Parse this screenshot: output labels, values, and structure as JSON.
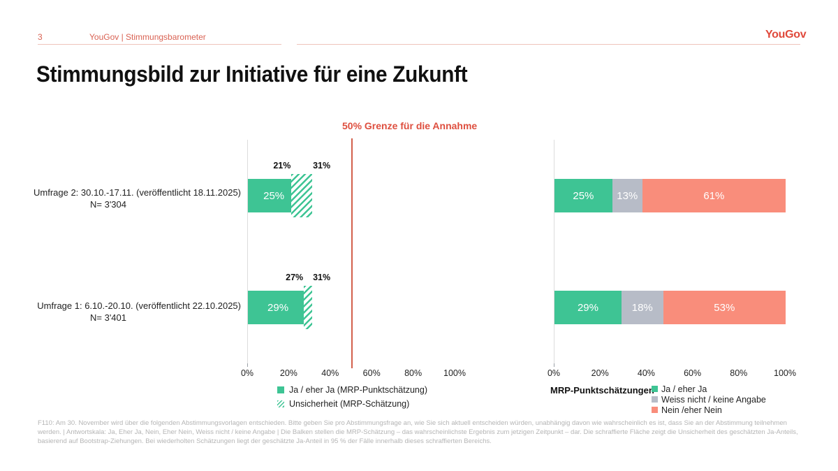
{
  "header": {
    "page_number": "3",
    "label": "YouGov | Stimmungsbarometer",
    "logo_text": "YouGov"
  },
  "title": "Stimmungsbild zur Initiative für eine Zukunft",
  "colors": {
    "accent_red": "#de4f3f",
    "reference_line_red": "#d2604c",
    "teal": "#3ec494",
    "neutral_gray": "#b7bcc7",
    "salmon": "#f98d7b",
    "header_salmon": "#d96253"
  },
  "rows": [
    {
      "label": "Umfrage 2: 30.10.-17.11. (veröffentlicht 18.11.2025)",
      "n_label": "N= 3'304"
    },
    {
      "label": "Umfrage 1: 6.10.-20.10. (veröffentlicht 22.10.2025)",
      "n_label": "N= 3'401"
    }
  ],
  "chart_data": [
    {
      "type": "bar",
      "orientation": "horizontal",
      "title": "50% Grenze für die Annahme",
      "categories": [
        "Umfrage 2: 30.10.-17.11. (veröffentlicht 18.11.2025), N= 3'304",
        "Umfrage 1: 6.10.-20.10. (veröffentlicht 22.10.2025), N= 3'401"
      ],
      "series": [
        {
          "name": "Ja / eher Ja (MRP-Punktschätzung)",
          "color": "#3ec494",
          "values": [
            25,
            29
          ]
        }
      ],
      "uncertainty": [
        {
          "name": "Unsicherheit (MRP-Schätzung)",
          "low": 21,
          "high": 31
        },
        {
          "name": "Unsicherheit (MRP-Schätzung)",
          "low": 27,
          "high": 31
        }
      ],
      "reference_line_x": 50,
      "xlim": [
        0,
        100
      ],
      "x_ticks": [
        "0%",
        "20%",
        "40%",
        "60%",
        "80%",
        "100%"
      ],
      "legend": [
        "Ja / eher Ja (MRP-Punktschätzung)",
        "Unsicherheit (MRP-Schätzung)"
      ],
      "legend_position": "bottom",
      "grid": false
    },
    {
      "type": "bar",
      "orientation": "horizontal",
      "stacked": true,
      "categories": [
        "Umfrage 2: 30.10.-17.11. (veröffentlicht 18.11.2025), N= 3'304",
        "Umfrage 1: 6.10.-20.10. (veröffentlicht 22.10.2025), N= 3'401"
      ],
      "series": [
        {
          "name": "Ja / eher Ja",
          "color": "#3ec494",
          "values": [
            25,
            29
          ]
        },
        {
          "name": "Weiss nicht / keine Angabe",
          "color": "#b7bcc7",
          "values": [
            13,
            18
          ]
        },
        {
          "name": "Nein /eher Nein",
          "color": "#f98d7b",
          "values": [
            61,
            53
          ]
        }
      ],
      "legend_title": "MRP-Punktschätzungen",
      "xlim": [
        0,
        100
      ],
      "x_ticks": [
        "0%",
        "20%",
        "40%",
        "60%",
        "80%",
        "100%"
      ],
      "legend_position": "bottom-right",
      "grid": false
    }
  ],
  "footnote": "F110: Am 30. November wird über die folgenden Abstimmungsvorlagen entschieden. Bitte geben Sie pro Abstimmungsfrage an, wie Sie sich aktuell entscheiden würden, unabhängig davon wie wahrscheinlich es ist, dass Sie an der Abstimmung teilnehmen werden. | Antwortskala: Ja, Eher Ja, Nein, Eher Nein, Weiss nicht / keine Angabe | Die Balken stellen die MRP-Schätzung – das wahrscheinlichste Ergebnis zum jetzigen Zeitpunkt – dar. Die schraffierte Fläche zeigt die Unsicherheit des geschätzten Ja-Anteils, basierend auf Bootstrap-Ziehungen. Bei wiederholten Schätzungen liegt der geschätzte Ja-Anteil in 95 % der Fälle innerhalb dieses schraffierten Bereichs."
}
